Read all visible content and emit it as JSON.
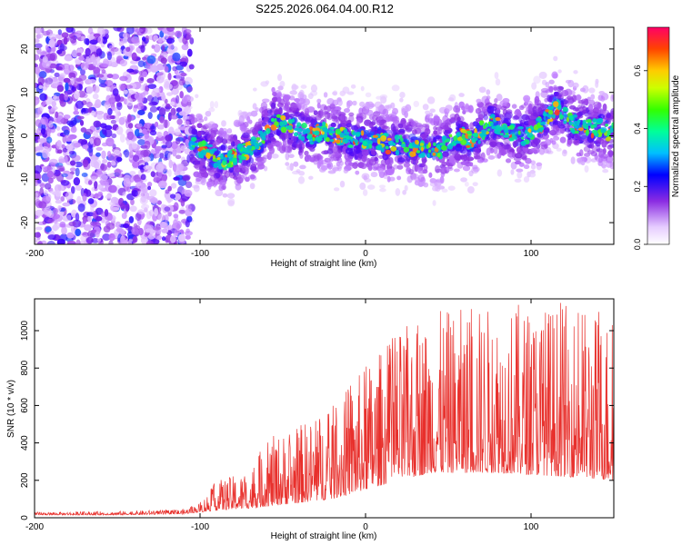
{
  "title": "S225.2026.064.04.00.R12",
  "chart_data": [
    {
      "type": "heatmap",
      "xlabel": "Height of straight line (km)",
      "ylabel": "Frequency (Hz)",
      "xlim": [
        -200,
        150
      ],
      "ylim": [
        -25,
        25
      ],
      "xticks": [
        -200,
        -100,
        0,
        100
      ],
      "yticks": [
        -20,
        -10,
        0,
        10,
        20
      ],
      "colorbar": {
        "label": "Normalized spectral amplitude",
        "range": [
          0,
          0.75
        ],
        "ticks": [
          "0.0",
          "0.2",
          "0.4",
          "0.6"
        ]
      },
      "noise_region_x": [
        -200,
        -105
      ],
      "ridge": [
        {
          "x": -105,
          "y": -2
        },
        {
          "x": -95,
          "y": -4
        },
        {
          "x": -85,
          "y": -6
        },
        {
          "x": -75,
          "y": -4
        },
        {
          "x": -65,
          "y": -2
        },
        {
          "x": -55,
          "y": 4
        },
        {
          "x": -45,
          "y": 2
        },
        {
          "x": -35,
          "y": 0
        },
        {
          "x": -25,
          "y": 1
        },
        {
          "x": -15,
          "y": 0
        },
        {
          "x": -5,
          "y": -1
        },
        {
          "x": 5,
          "y": -1
        },
        {
          "x": 15,
          "y": -2
        },
        {
          "x": 25,
          "y": -2
        },
        {
          "x": 35,
          "y": -3
        },
        {
          "x": 45,
          "y": -3
        },
        {
          "x": 55,
          "y": 0
        },
        {
          "x": 65,
          "y": -1
        },
        {
          "x": 75,
          "y": 3
        },
        {
          "x": 85,
          "y": 1
        },
        {
          "x": 95,
          "y": 0
        },
        {
          "x": 105,
          "y": 2
        },
        {
          "x": 115,
          "y": 7
        },
        {
          "x": 125,
          "y": 3
        },
        {
          "x": 135,
          "y": 2
        },
        {
          "x": 150,
          "y": 1
        }
      ]
    },
    {
      "type": "line",
      "xlabel": "Height of straight line (km)",
      "ylabel": "SNR (10 * v/v)",
      "xlim": [
        -200,
        150
      ],
      "ylim": [
        0,
        1170
      ],
      "xticks": [
        -200,
        -100,
        0,
        100
      ],
      "yticks": [
        0,
        200,
        400,
        600,
        800,
        1000
      ],
      "color": "#e8302c",
      "envelope": [
        {
          "x": -200,
          "base": 15,
          "peak": 30
        },
        {
          "x": -150,
          "base": 15,
          "peak": 35
        },
        {
          "x": -110,
          "base": 20,
          "peak": 45
        },
        {
          "x": -100,
          "base": 30,
          "peak": 80
        },
        {
          "x": -90,
          "base": 40,
          "peak": 200
        },
        {
          "x": -70,
          "base": 50,
          "peak": 250
        },
        {
          "x": -60,
          "base": 60,
          "peak": 420
        },
        {
          "x": -40,
          "base": 80,
          "peak": 500
        },
        {
          "x": -20,
          "base": 100,
          "peak": 600
        },
        {
          "x": 0,
          "base": 150,
          "peak": 820
        },
        {
          "x": 20,
          "base": 200,
          "peak": 1000
        },
        {
          "x": 40,
          "base": 240,
          "peak": 1100
        },
        {
          "x": 80,
          "base": 240,
          "peak": 1150
        },
        {
          "x": 120,
          "base": 220,
          "peak": 1150
        },
        {
          "x": 150,
          "base": 200,
          "peak": 1100
        }
      ]
    }
  ]
}
